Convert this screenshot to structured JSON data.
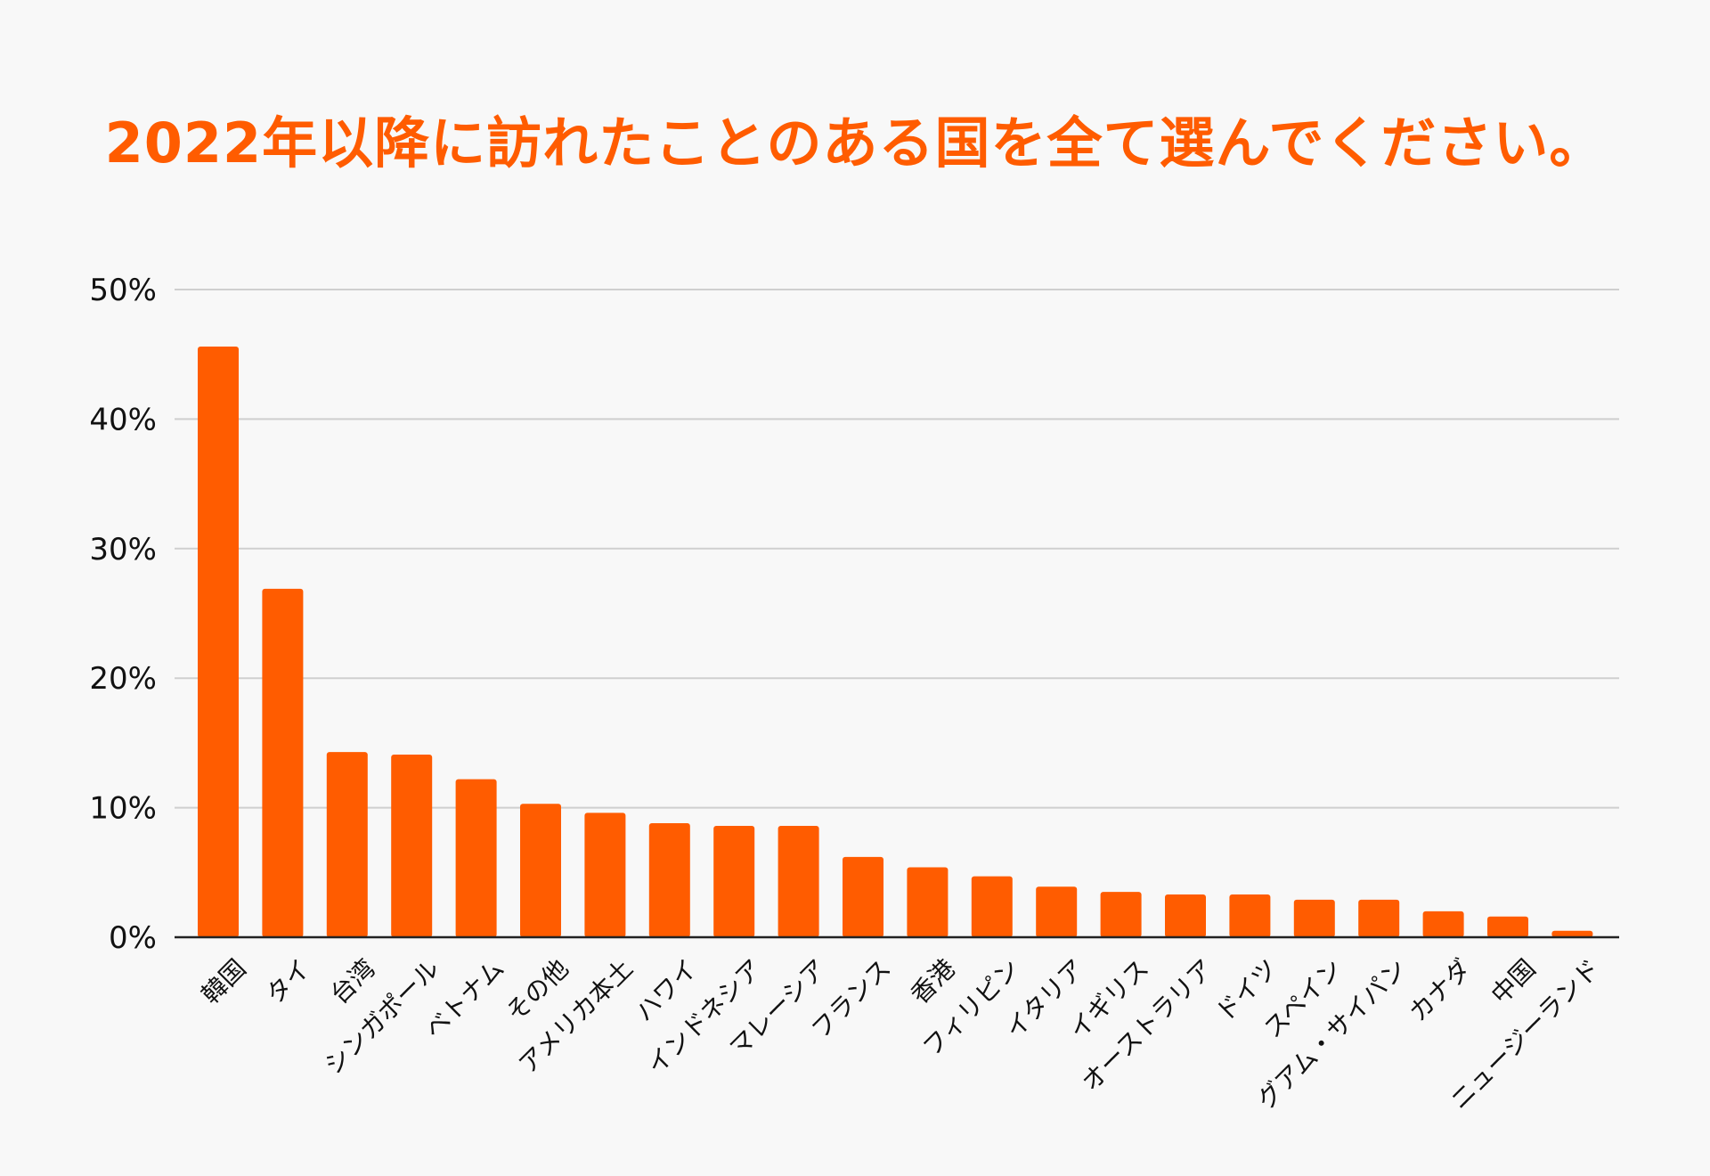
{
  "chart_data": {
    "type": "bar",
    "title": "2022年以降に訪れたことのある国を全て選んでください。",
    "categories": [
      "韓国",
      "タイ",
      "台湾",
      "シンガポール",
      "ベトナム",
      "その他",
      "アメリカ本土",
      "ハワイ",
      "インドネシア",
      "マレーシア",
      "フランス",
      "香港",
      "フィリピン",
      "イタリア",
      "イギリス",
      "オーストラリア",
      "ドイツ",
      "スペイン",
      "グアム・サイパン",
      "カナダ",
      "中国",
      "ニュージーランド"
    ],
    "values": [
      45.6,
      26.9,
      14.3,
      14.1,
      12.2,
      10.3,
      9.6,
      8.8,
      8.6,
      8.6,
      6.2,
      5.4,
      4.7,
      3.9,
      3.5,
      3.3,
      3.3,
      2.9,
      2.9,
      2.0,
      1.6,
      0.5
    ],
    "xlabel": "",
    "ylabel": "",
    "ylim": [
      0,
      50
    ],
    "yticks": [
      "0%",
      "10%",
      "20%",
      "30%",
      "40%",
      "50%"
    ],
    "ytick_values": [
      0,
      10,
      20,
      30,
      40,
      50
    ],
    "grid": true,
    "legend": "none",
    "colors": {
      "bar": "#ff5c00",
      "title": "#ff5c00",
      "grid": "#cfcfcf",
      "axis": "#222222",
      "background": "#f8f8f8"
    }
  }
}
